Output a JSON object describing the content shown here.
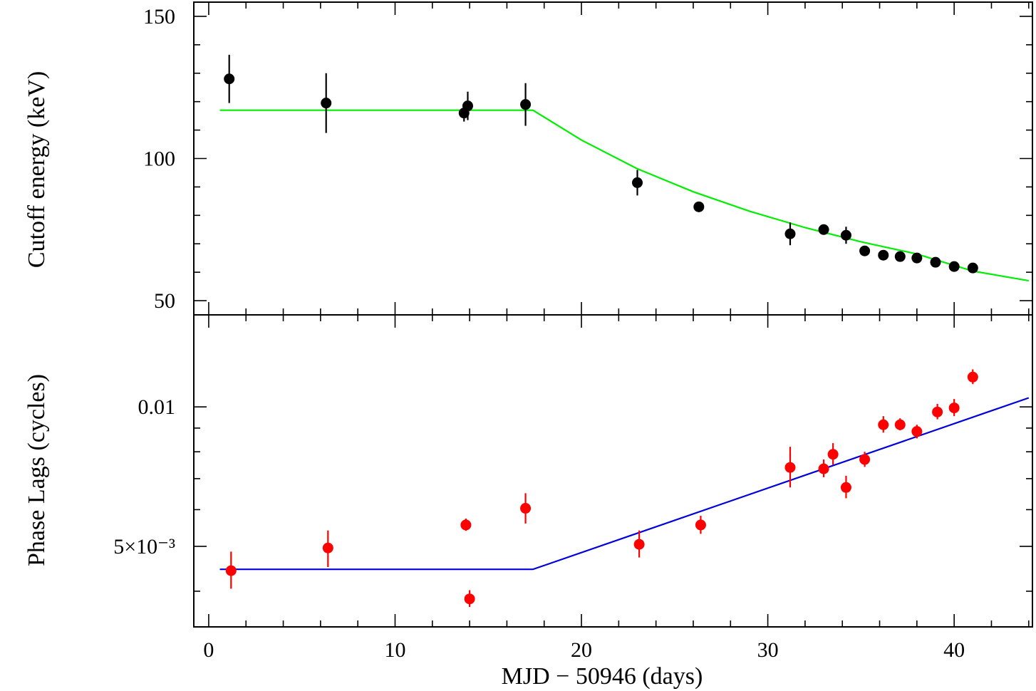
{
  "chart_data": [
    {
      "type": "scatter",
      "panel": "top",
      "ylabel": "Cutoff energy (keV)",
      "xlim": [
        -0.8,
        44.2
      ],
      "ylim": [
        45,
        155
      ],
      "yticks": [
        50,
        100,
        150
      ],
      "y_minor_step": 10,
      "marker_color": "#000000",
      "model_color": "#00ee00",
      "points": [
        {
          "x": 1.1,
          "y": 128.0,
          "err": 8.5
        },
        {
          "x": 6.3,
          "y": 119.5,
          "err": 10.5
        },
        {
          "x": 13.7,
          "y": 116.0,
          "err": 3.0
        },
        {
          "x": 13.9,
          "y": 118.5,
          "err": 5.0
        },
        {
          "x": 17.0,
          "y": 119.0,
          "err": 7.5
        },
        {
          "x": 23.0,
          "y": 91.5,
          "err": 4.5
        },
        {
          "x": 26.3,
          "y": 83.0,
          "err": 1.5
        },
        {
          "x": 31.2,
          "y": 73.5,
          "err": 4.0
        },
        {
          "x": 33.0,
          "y": 75.0,
          "err": 1.5
        },
        {
          "x": 34.2,
          "y": 73.0,
          "err": 3.0
        },
        {
          "x": 35.2,
          "y": 67.5,
          "err": 1.5
        },
        {
          "x": 36.2,
          "y": 66.0,
          "err": 1.5
        },
        {
          "x": 37.1,
          "y": 65.5,
          "err": 1.2
        },
        {
          "x": 38.0,
          "y": 65.0,
          "err": 1.2
        },
        {
          "x": 39.0,
          "y": 63.5,
          "err": 1.2
        },
        {
          "x": 40.0,
          "y": 62.0,
          "err": 1.2
        },
        {
          "x": 41.0,
          "y": 61.5,
          "err": 1.2
        }
      ],
      "model": [
        [
          0.6,
          117.0
        ],
        [
          17.4,
          117.0
        ],
        [
          20,
          106.5
        ],
        [
          23,
          96.4
        ],
        [
          26,
          88.3
        ],
        [
          29,
          81.5
        ],
        [
          32,
          75.7
        ],
        [
          35,
          70.7
        ],
        [
          38,
          66.4
        ],
        [
          41,
          60.4
        ],
        [
          44.0,
          57.0
        ]
      ]
    },
    {
      "type": "scatter",
      "panel": "bottom",
      "ylabel": "Phase Lags (cycles)",
      "xlabel": "MJD − 50946 (days)",
      "xlim": [
        -0.8,
        44.2
      ],
      "yscale": "log",
      "ylim": [
        0.00335,
        0.0158
      ],
      "yticks": [
        {
          "value": 0.005,
          "label": "5×10⁻³"
        },
        {
          "value": 0.01,
          "label": "0.01"
        }
      ],
      "y_minor_ticks": [
        0.004,
        0.006,
        0.007,
        0.008,
        0.009
      ],
      "xticks": [
        0,
        10,
        20,
        30,
        40
      ],
      "x_minor_step": 2,
      "marker_color": "#ff0000",
      "model_color": "#0000dd",
      "points": [
        {
          "x": 1.2,
          "y": 0.00443,
          "lo": 0.00405,
          "hi": 0.00487
        },
        {
          "x": 6.4,
          "y": 0.00496,
          "lo": 0.00451,
          "hi": 0.00541
        },
        {
          "x": 13.8,
          "y": 0.00556,
          "lo": 0.0054,
          "hi": 0.00574
        },
        {
          "x": 14.0,
          "y": 0.00385,
          "lo": 0.0037,
          "hi": 0.00402
        },
        {
          "x": 17.0,
          "y": 0.00604,
          "lo": 0.0056,
          "hi": 0.00651
        },
        {
          "x": 23.1,
          "y": 0.00505,
          "lo": 0.00473,
          "hi": 0.00541
        },
        {
          "x": 26.4,
          "y": 0.00556,
          "lo": 0.00532,
          "hi": 0.00582
        },
        {
          "x": 31.2,
          "y": 0.0074,
          "lo": 0.0067,
          "hi": 0.0082
        },
        {
          "x": 33.0,
          "y": 0.00735,
          "lo": 0.00705,
          "hi": 0.0077
        },
        {
          "x": 33.5,
          "y": 0.0079,
          "lo": 0.0075,
          "hi": 0.00835
        },
        {
          "x": 34.2,
          "y": 0.0067,
          "lo": 0.00635,
          "hi": 0.0071
        },
        {
          "x": 35.2,
          "y": 0.0077,
          "lo": 0.00742,
          "hi": 0.008
        },
        {
          "x": 36.2,
          "y": 0.00915,
          "lo": 0.0088,
          "hi": 0.00955
        },
        {
          "x": 37.1,
          "y": 0.00915,
          "lo": 0.0089,
          "hi": 0.00945
        },
        {
          "x": 38.0,
          "y": 0.00885,
          "lo": 0.00855,
          "hi": 0.00915
        },
        {
          "x": 39.1,
          "y": 0.00975,
          "lo": 0.0094,
          "hi": 0.01015
        },
        {
          "x": 40.0,
          "y": 0.00995,
          "lo": 0.00955,
          "hi": 0.0104
        },
        {
          "x": 41.0,
          "y": 0.0116,
          "lo": 0.0112,
          "hi": 0.01205
        }
      ],
      "model": [
        [
          0.6,
          0.00446
        ],
        [
          17.4,
          0.00446
        ],
        [
          44.0,
          0.01046
        ]
      ]
    }
  ]
}
